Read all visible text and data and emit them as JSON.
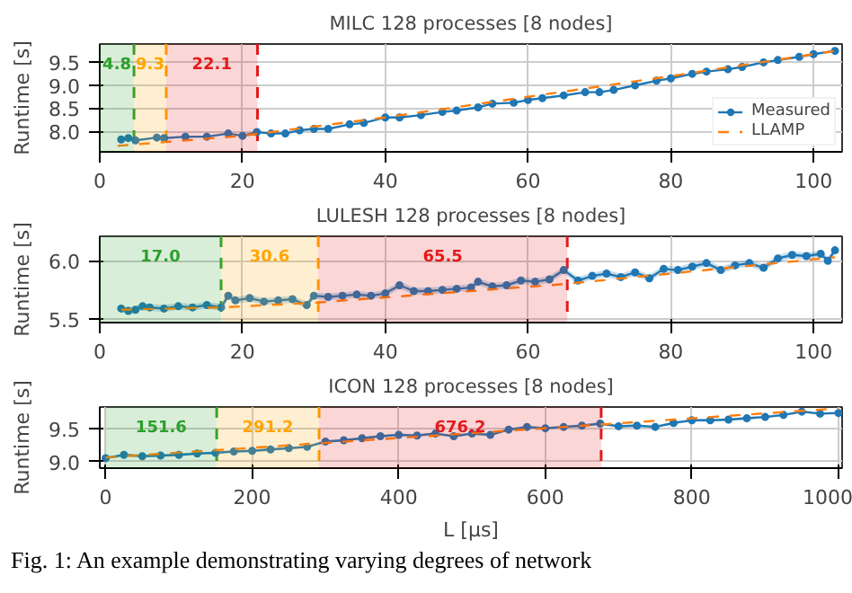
{
  "chart_data": [
    {
      "type": "line",
      "title": "MILC 128 processes [8 nodes]",
      "ylabel": "Runtime [s]",
      "xlim": [
        0,
        104
      ],
      "ylim": [
        7.55,
        9.9
      ],
      "xticks": [
        0,
        20,
        40,
        60,
        80,
        100
      ],
      "yticks": [
        {
          "value": 8,
          "label": "8.0"
        },
        8.5,
        {
          "value": 9,
          "label": "9.0"
        },
        9.5
      ],
      "grid": true,
      "legend": "bottom right",
      "series": [
        {
          "name": "Measured",
          "color": "#1f77b4",
          "marker": "circle",
          "line_style": "solid",
          "x": [
            3,
            4,
            5,
            8,
            9,
            12,
            15,
            18,
            20,
            22,
            24,
            26,
            28,
            30,
            32,
            35,
            37,
            40,
            42,
            45,
            48,
            50,
            53,
            55,
            58,
            60,
            62,
            65,
            68,
            70,
            72,
            75,
            78,
            80,
            83,
            85,
            88,
            90,
            93,
            95,
            98,
            100,
            103
          ],
          "values": [
            7.82,
            7.85,
            7.8,
            7.86,
            7.85,
            7.88,
            7.88,
            7.95,
            7.9,
            7.98,
            7.95,
            7.95,
            8.02,
            8.05,
            8.05,
            8.15,
            8.18,
            8.3,
            8.3,
            8.35,
            8.42,
            8.45,
            8.52,
            8.6,
            8.62,
            8.68,
            8.72,
            8.78,
            8.85,
            8.85,
            8.9,
            9.0,
            9.1,
            9.15,
            9.25,
            9.3,
            9.35,
            9.4,
            9.5,
            9.55,
            9.62,
            9.68,
            9.75
          ]
        },
        {
          "name": "LLAMP",
          "color": "#ff7f0e",
          "marker": "none",
          "line_style": "dashed",
          "x": [
            2.5,
            20,
            40,
            60,
            80,
            103
          ],
          "values": [
            7.68,
            7.9,
            8.3,
            8.75,
            9.2,
            9.75
          ]
        }
      ],
      "bands": [
        {
          "axis": "x",
          "from": 0,
          "to": 4.8,
          "label": "4.8",
          "color": "#2ca02c"
        },
        {
          "axis": "x",
          "from": 4.8,
          "to": 9.3,
          "label": "9.3",
          "color": "#ffa500"
        },
        {
          "axis": "x",
          "from": 9.3,
          "to": 22.1,
          "label": "22.1",
          "color": "#e31a1c"
        }
      ],
      "ref_lines": [
        {
          "axis": "x",
          "value": 4.8,
          "color": "#2ca02c",
          "line_style": "dashed"
        },
        {
          "axis": "x",
          "value": 9.3,
          "color": "#ffa500",
          "line_style": "dashed"
        },
        {
          "axis": "x",
          "value": 22.1,
          "color": "#e31a1c",
          "line_style": "dashed"
        }
      ]
    },
    {
      "type": "line",
      "title": "LULESH 128 processes [8 nodes]",
      "ylabel": "Runtime [s]",
      "xlim": [
        0,
        104
      ],
      "ylim": [
        5.47,
        6.21
      ],
      "xticks": [
        0,
        20,
        40,
        60,
        80,
        100
      ],
      "yticks": [
        5.5,
        {
          "value": 6,
          "label": "6.0"
        }
      ],
      "grid": true,
      "series": [
        {
          "color": "#1f77b4",
          "marker": "circle",
          "line_style": "solid",
          "x": [
            3,
            4,
            5,
            6,
            7,
            9,
            11,
            13,
            15,
            17,
            18,
            19,
            21,
            23,
            25,
            27,
            29,
            30,
            32,
            34,
            36,
            38,
            40,
            42,
            44,
            46,
            48,
            50,
            52,
            53,
            55,
            57,
            59,
            61,
            63,
            65,
            67,
            69,
            71,
            73,
            75,
            77,
            79,
            81,
            83,
            85,
            87,
            89,
            91,
            93,
            95,
            97,
            99,
            101,
            102,
            103
          ],
          "values": [
            5.59,
            5.57,
            5.58,
            5.61,
            5.6,
            5.59,
            5.61,
            5.6,
            5.62,
            5.6,
            5.7,
            5.66,
            5.68,
            5.65,
            5.66,
            5.67,
            5.62,
            5.7,
            5.69,
            5.7,
            5.71,
            5.7,
            5.72,
            5.79,
            5.74,
            5.74,
            5.75,
            5.76,
            5.77,
            5.82,
            5.78,
            5.79,
            5.83,
            5.82,
            5.84,
            5.92,
            5.83,
            5.87,
            5.89,
            5.86,
            5.9,
            5.85,
            5.93,
            5.92,
            5.95,
            5.98,
            5.92,
            5.96,
            5.98,
            5.94,
            6.02,
            6.05,
            6.04,
            6.06,
            6.0,
            6.09
          ],
          "lower": [
            5.56,
            5.54,
            5.55,
            5.58,
            5.57,
            5.56,
            5.58,
            5.57,
            5.59,
            5.57,
            5.67,
            5.63,
            5.65,
            5.62,
            5.63,
            5.64,
            5.59,
            5.67,
            5.66,
            5.67,
            5.68,
            5.67,
            5.69,
            5.76,
            5.71,
            5.71,
            5.72,
            5.73,
            5.74,
            5.79,
            5.75,
            5.76,
            5.8,
            5.79,
            5.81,
            5.89,
            5.8,
            5.84,
            5.86,
            5.83,
            5.87,
            5.82,
            5.9,
            5.89,
            5.92,
            5.95,
            5.89,
            5.93,
            5.95,
            5.91,
            5.99,
            6.02,
            6.01,
            6.03,
            5.97,
            6.06
          ],
          "upper": [
            5.62,
            5.6,
            5.61,
            5.64,
            5.63,
            5.62,
            5.64,
            5.63,
            5.65,
            5.63,
            5.73,
            5.69,
            5.71,
            5.68,
            5.69,
            5.7,
            5.65,
            5.73,
            5.72,
            5.73,
            5.74,
            5.73,
            5.75,
            5.82,
            5.77,
            5.77,
            5.78,
            5.79,
            5.8,
            5.85,
            5.81,
            5.82,
            5.86,
            5.85,
            5.87,
            5.95,
            5.86,
            5.9,
            5.92,
            5.89,
            5.93,
            5.88,
            5.96,
            5.95,
            5.98,
            6.01,
            5.95,
            5.99,
            6.01,
            5.97,
            6.05,
            6.08,
            6.07,
            6.09,
            6.03,
            6.12
          ]
        },
        {
          "color": "#ff7f0e",
          "marker": "none",
          "line_style": "dashed",
          "x": [
            3,
            17,
            30,
            65,
            103
          ],
          "values": [
            5.58,
            5.6,
            5.64,
            5.8,
            6.03
          ]
        }
      ],
      "bands": [
        {
          "axis": "x",
          "from": 0,
          "to": 17.0,
          "label": "17.0",
          "color": "#2ca02c"
        },
        {
          "axis": "x",
          "from": 17.0,
          "to": 30.6,
          "label": "30.6",
          "color": "#ffa500"
        },
        {
          "axis": "x",
          "from": 30.6,
          "to": 65.5,
          "label": "65.5",
          "color": "#e31a1c"
        }
      ],
      "ref_lines": [
        {
          "axis": "x",
          "value": 17.0,
          "color": "#2ca02c",
          "line_style": "dashed"
        },
        {
          "axis": "x",
          "value": 30.6,
          "color": "#ffa500",
          "line_style": "dashed"
        },
        {
          "axis": "x",
          "value": 65.5,
          "color": "#e31a1c",
          "line_style": "dashed"
        }
      ]
    },
    {
      "type": "line",
      "title": "ICON 128 processes [8 nodes]",
      "xlabel": "L [µs]",
      "ylabel": "Runtime [s]",
      "xlim": [
        -8,
        1005
      ],
      "ylim": [
        8.9,
        9.82
      ],
      "xticks": [
        0,
        200,
        400,
        600,
        800,
        1000
      ],
      "yticks": [
        {
          "value": 9,
          "label": "9.0"
        },
        9.5
      ],
      "grid": true,
      "annotations": [
        "Fig. 1: An example demonstrating varying degrees of network"
      ],
      "series": [
        {
          "color": "#1f77b4",
          "marker": "circle",
          "line_style": "solid",
          "x": [
            0,
            25,
            50,
            75,
            100,
            125,
            150,
            175,
            200,
            225,
            250,
            275,
            300,
            325,
            350,
            375,
            400,
            425,
            450,
            475,
            500,
            525,
            550,
            575,
            600,
            625,
            650,
            675,
            700,
            725,
            750,
            775,
            800,
            825,
            850,
            875,
            900,
            925,
            950,
            975,
            1000
          ],
          "values": [
            9.05,
            9.1,
            9.08,
            9.09,
            9.1,
            9.12,
            9.13,
            9.15,
            9.16,
            9.18,
            9.2,
            9.22,
            9.3,
            9.32,
            9.35,
            9.38,
            9.4,
            9.39,
            9.42,
            9.38,
            9.42,
            9.4,
            9.48,
            9.52,
            9.5,
            9.52,
            9.54,
            9.57,
            9.53,
            9.54,
            9.52,
            9.58,
            9.62,
            9.62,
            9.63,
            9.65,
            9.67,
            9.7,
            9.75,
            9.72,
            9.73
          ],
          "lower": [
            9.03,
            9.08,
            9.06,
            9.07,
            9.08,
            9.1,
            9.11,
            9.13,
            9.14,
            9.16,
            9.18,
            9.2,
            9.28,
            9.3,
            9.33,
            9.36,
            9.38,
            9.37,
            9.4,
            9.36,
            9.4,
            9.38,
            9.46,
            9.5,
            9.48,
            9.5,
            9.52,
            9.55,
            9.51,
            9.52,
            9.5,
            9.56,
            9.6,
            9.6,
            9.61,
            9.63,
            9.65,
            9.68,
            9.73,
            9.7,
            9.71
          ],
          "upper": [
            9.07,
            9.12,
            9.1,
            9.11,
            9.12,
            9.14,
            9.15,
            9.17,
            9.18,
            9.2,
            9.22,
            9.24,
            9.32,
            9.34,
            9.37,
            9.4,
            9.42,
            9.41,
            9.44,
            9.4,
            9.44,
            9.42,
            9.5,
            9.54,
            9.52,
            9.54,
            9.56,
            9.59,
            9.55,
            9.56,
            9.54,
            9.6,
            9.64,
            9.64,
            9.65,
            9.67,
            9.69,
            9.72,
            9.77,
            9.74,
            9.75
          ]
        },
        {
          "color": "#ff7f0e",
          "marker": "none",
          "line_style": "dashed",
          "x": [
            0,
            300,
            680,
            1000
          ],
          "values": [
            9.06,
            9.28,
            9.56,
            9.8
          ]
        }
      ],
      "bands": [
        {
          "axis": "x",
          "from": 0,
          "to": 151.6,
          "label": "151.6",
          "color": "#2ca02c"
        },
        {
          "axis": "x",
          "from": 151.6,
          "to": 291.2,
          "label": "291.2",
          "color": "#ffa500"
        },
        {
          "axis": "x",
          "from": 291.2,
          "to": 676.2,
          "label": "676.2",
          "color": "#e31a1c"
        }
      ],
      "ref_lines": [
        {
          "axis": "x",
          "value": 151.6,
          "color": "#2ca02c",
          "line_style": "dashed"
        },
        {
          "axis": "x",
          "value": 291.2,
          "color": "#ffa500",
          "line_style": "dashed"
        },
        {
          "axis": "x",
          "value": 676.2,
          "color": "#e31a1c",
          "line_style": "dashed"
        }
      ]
    }
  ]
}
